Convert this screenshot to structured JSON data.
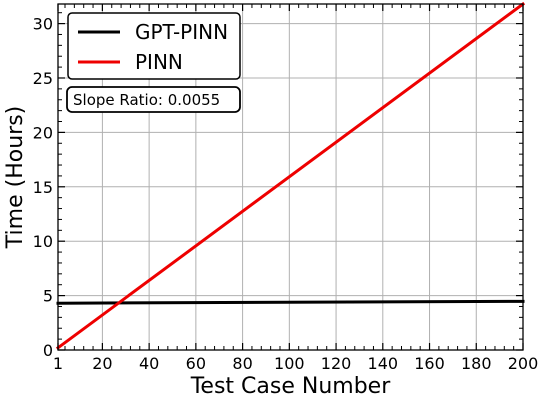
{
  "chart_data": {
    "type": "line",
    "xlabel": "Test Case Number",
    "ylabel": "Time (Hours)",
    "xlim": [
      1,
      200
    ],
    "ylim": [
      0,
      31.8
    ],
    "grid": true,
    "legend_position": "top-left",
    "xticks": [
      {
        "value": 1,
        "label": "1"
      },
      {
        "value": 20,
        "label": "20"
      },
      {
        "value": 40,
        "label": "40"
      },
      {
        "value": 60,
        "label": "60"
      },
      {
        "value": 80,
        "label": "80"
      },
      {
        "value": 100,
        "label": "100"
      },
      {
        "value": 120,
        "label": "120"
      },
      {
        "value": 140,
        "label": "140"
      },
      {
        "value": 160,
        "label": "160"
      },
      {
        "value": 180,
        "label": "180"
      },
      {
        "value": 200,
        "label": "200"
      }
    ],
    "yticks": [
      {
        "value": 0,
        "label": "0"
      },
      {
        "value": 5,
        "label": "5"
      },
      {
        "value": 10,
        "label": "10"
      },
      {
        "value": 15,
        "label": "15"
      },
      {
        "value": 20,
        "label": "20"
      },
      {
        "value": 25,
        "label": "25"
      },
      {
        "value": 30,
        "label": "30"
      }
    ],
    "series": [
      {
        "name": "GPT-PINN",
        "color": "#000000",
        "x": [
          1,
          200
        ],
        "y": [
          4.3,
          4.47
        ]
      },
      {
        "name": "PINN",
        "color": "#ee0000",
        "x": [
          1,
          200
        ],
        "y": [
          0.2,
          31.8
        ]
      }
    ],
    "annotation": "Slope Ratio: 0.0055"
  }
}
